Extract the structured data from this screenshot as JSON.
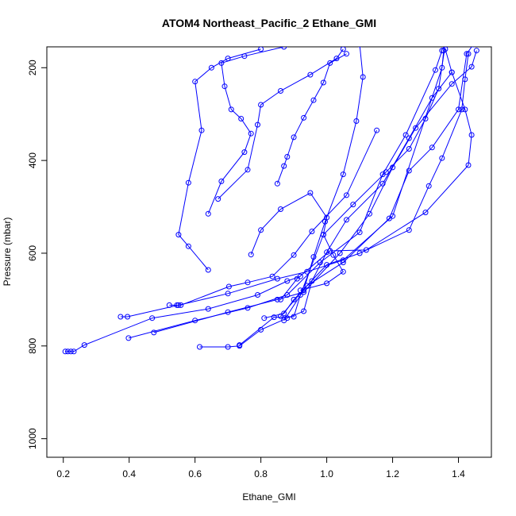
{
  "chart_data": {
    "type": "line",
    "title": "ATOM4 Northeast_Pacific_2 Ethane_GMI",
    "xlabel": "Ethane_GMI",
    "ylabel": "Pressure (mbar)",
    "xlim": [
      0.15,
      1.5
    ],
    "ylim": [
      1040,
      155
    ],
    "y_reversed": true,
    "grid": false,
    "color": "#0000ff",
    "marker": "open-circle",
    "x_ticks": [
      0.2,
      0.4,
      0.6,
      0.8,
      1.0,
      1.2,
      1.4
    ],
    "x_tick_labels": [
      "0.2",
      "0.4",
      "0.6",
      "0.8",
      "1.0",
      "1.2",
      "1.4"
    ],
    "y_ticks": [
      200,
      400,
      600,
      800,
      1000
    ],
    "y_tick_labels": [
      "200",
      "400",
      "600",
      "800",
      "1000"
    ],
    "series": [
      {
        "points": [
          [
            0.206,
            812
          ],
          [
            0.214,
            812
          ],
          [
            0.223,
            812
          ],
          [
            0.232,
            812
          ],
          [
            0.264,
            798
          ],
          [
            0.47,
            740
          ],
          [
            0.64,
            720
          ],
          [
            0.79,
            690
          ],
          [
            0.88,
            660
          ],
          [
            0.92,
            650
          ]
        ]
      },
      {
        "points": [
          [
            0.374,
            737
          ],
          [
            0.395,
            737
          ],
          [
            0.55,
            712
          ],
          [
            0.7,
            687
          ],
          [
            0.85,
            655
          ],
          [
            0.94,
            640
          ],
          [
            1.05,
            615
          ],
          [
            1.2,
            520
          ],
          [
            1.35,
            200
          ],
          [
            1.355,
            163
          ]
        ]
      },
      {
        "points": [
          [
            0.398,
            783
          ],
          [
            0.6,
            745
          ],
          [
            0.76,
            718
          ],
          [
            0.88,
            690
          ],
          [
            0.98,
            620
          ],
          [
            1.1,
            555
          ],
          [
            1.17,
            430
          ],
          [
            1.24,
            345
          ],
          [
            1.33,
            205
          ],
          [
            1.35,
            163
          ]
        ]
      },
      {
        "points": [
          [
            0.475,
            771
          ],
          [
            0.7,
            727
          ],
          [
            0.85,
            700
          ],
          [
            0.93,
            684
          ],
          [
            1.04,
            600
          ],
          [
            1.13,
            515
          ],
          [
            1.2,
            415
          ],
          [
            1.27,
            330
          ],
          [
            1.38,
            235
          ],
          [
            1.44,
            198
          ],
          [
            1.455,
            163
          ]
        ]
      },
      {
        "points": [
          [
            0.522,
            712
          ],
          [
            0.545,
            712
          ],
          [
            0.557,
            712
          ],
          [
            0.703,
            672
          ],
          [
            0.76,
            663
          ],
          [
            0.835,
            650
          ],
          [
            0.9,
            604
          ],
          [
            0.955,
            553
          ],
          [
            1.06,
            475
          ],
          [
            1.152,
            335
          ]
        ]
      },
      {
        "points": [
          [
            0.614,
            802
          ],
          [
            0.7,
            802
          ],
          [
            0.735,
            800
          ],
          [
            0.8,
            765
          ],
          [
            0.88,
            740
          ],
          [
            0.93,
            725
          ],
          [
            0.955,
            660
          ],
          [
            1.0,
            598
          ],
          [
            1.06,
            528
          ],
          [
            1.17,
            450
          ],
          [
            1.25,
            352
          ],
          [
            1.32,
            265
          ],
          [
            1.38,
            210
          ]
        ]
      },
      {
        "points": [
          [
            0.735,
            798
          ],
          [
            0.84,
            738
          ],
          [
            0.9,
            737
          ],
          [
            0.92,
            690
          ],
          [
            0.99,
            560
          ],
          [
            1.08,
            495
          ],
          [
            1.18,
            425
          ],
          [
            1.25,
            375
          ],
          [
            1.3,
            310
          ],
          [
            1.34,
            245
          ],
          [
            1.36,
            150
          ]
        ]
      },
      {
        "points": [
          [
            0.81,
            740
          ],
          [
            0.87,
            730
          ],
          [
            0.9,
            700
          ],
          [
            1.0,
            625
          ],
          [
            1.1,
            600
          ],
          [
            1.25,
            550
          ],
          [
            1.31,
            455
          ],
          [
            1.35,
            395
          ],
          [
            1.41,
            290
          ],
          [
            1.42,
            225
          ],
          [
            1.43,
            170
          ]
        ]
      },
      {
        "points": [
          [
            0.86,
            736
          ],
          [
            0.94,
            670
          ],
          [
            1.05,
            620
          ],
          [
            1.19,
            525
          ],
          [
            1.25,
            422
          ],
          [
            1.32,
            372
          ],
          [
            1.4,
            290
          ],
          [
            1.425,
            170
          ],
          [
            1.445,
            150
          ]
        ]
      },
      {
        "points": [
          [
            0.86,
            700
          ],
          [
            0.91,
            655
          ],
          [
            1.01,
            595
          ],
          [
            1.12,
            593
          ],
          [
            1.3,
            512
          ],
          [
            1.43,
            410
          ],
          [
            1.44,
            345
          ],
          [
            1.42,
            290
          ],
          [
            1.38,
            210
          ],
          [
            1.36,
            160
          ]
        ]
      },
      {
        "points": [
          [
            0.87,
            745
          ],
          [
            0.93,
            680
          ],
          [
            0.96,
            608
          ],
          [
            0.995,
            532
          ],
          [
            1.05,
            430
          ],
          [
            1.09,
            315
          ],
          [
            1.11,
            220
          ],
          [
            1.1,
            150
          ]
        ]
      },
      {
        "points": [
          [
            0.64,
            636
          ],
          [
            0.58,
            585
          ],
          [
            0.55,
            560
          ],
          [
            0.58,
            448
          ],
          [
            0.62,
            335
          ],
          [
            0.6,
            230
          ],
          [
            0.65,
            200
          ],
          [
            0.7,
            180
          ],
          [
            0.8,
            160
          ]
        ]
      },
      {
        "points": [
          [
            0.64,
            515
          ],
          [
            0.68,
            445
          ],
          [
            0.75,
            382
          ],
          [
            0.77,
            342
          ],
          [
            0.74,
            310
          ],
          [
            0.71,
            290
          ],
          [
            0.69,
            240
          ],
          [
            0.68,
            190
          ],
          [
            0.75,
            175
          ],
          [
            0.87,
            155
          ]
        ]
      },
      {
        "points": [
          [
            0.67,
            483
          ],
          [
            0.76,
            420
          ],
          [
            0.79,
            323
          ],
          [
            0.8,
            280
          ],
          [
            0.86,
            250
          ],
          [
            0.95,
            215
          ],
          [
            1.03,
            180
          ],
          [
            1.05,
            160
          ]
        ]
      },
      {
        "points": [
          [
            0.77,
            603
          ],
          [
            0.8,
            550
          ],
          [
            0.86,
            505
          ],
          [
            0.95,
            470
          ],
          [
            1.0,
            523
          ],
          [
            0.99,
            560
          ],
          [
            1.02,
            604
          ],
          [
            1.05,
            640
          ],
          [
            1.0,
            665
          ],
          [
            0.92,
            680
          ]
        ]
      },
      {
        "points": [
          [
            0.85,
            450
          ],
          [
            0.87,
            412
          ],
          [
            0.88,
            392
          ],
          [
            0.9,
            350
          ],
          [
            0.93,
            308
          ],
          [
            0.96,
            270
          ],
          [
            0.99,
            232
          ],
          [
            1.01,
            190
          ],
          [
            1.06,
            170
          ]
        ]
      }
    ]
  }
}
